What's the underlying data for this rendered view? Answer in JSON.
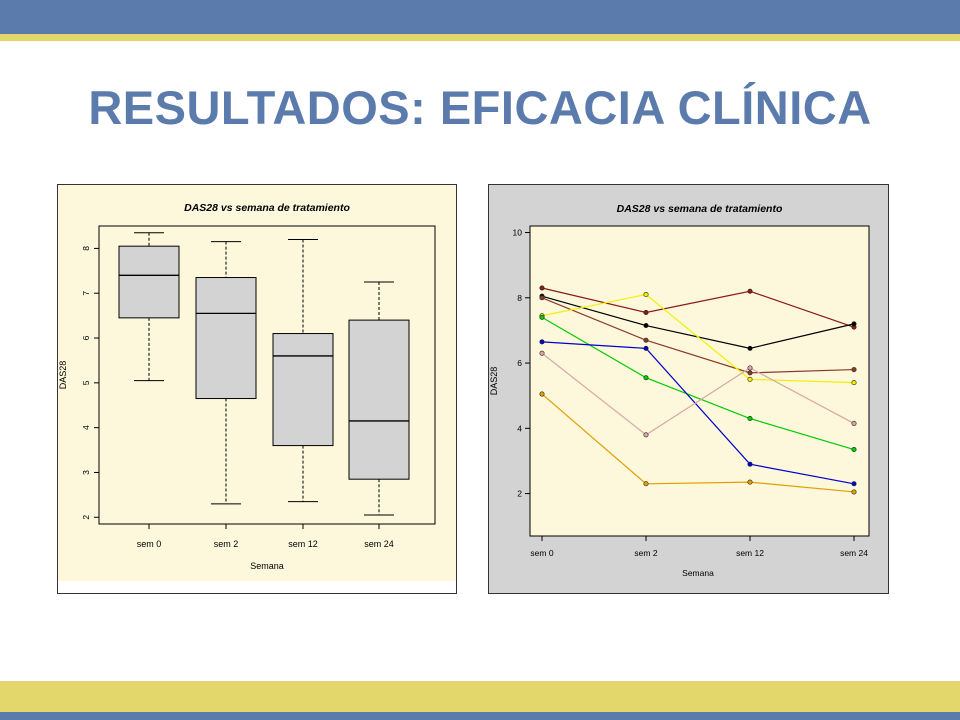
{
  "slide": {
    "title": "RESULTADOS: EFICACIA CLÍNICA",
    "colors": {
      "band_blue": "#5b7bad",
      "band_yellow": "#e3d66b",
      "title": "#5b7bad"
    }
  },
  "chart_data": [
    {
      "type": "box",
      "title": "DAS28 vs semana de tratamiento",
      "xlabel": "Semana",
      "ylabel": "DAS28",
      "categories": [
        "sem 0",
        "sem 2",
        "sem 12",
        "sem 24"
      ],
      "yticks": [
        2,
        3,
        4,
        5,
        6,
        7,
        8
      ],
      "ylim": [
        1.85,
        8.5
      ],
      "boxes": [
        {
          "category": "sem 0",
          "min": 5.05,
          "q1": 6.45,
          "median": 7.4,
          "q3": 8.05,
          "max": 8.35
        },
        {
          "category": "sem 2",
          "min": 2.3,
          "q1": 4.65,
          "median": 6.55,
          "q3": 7.35,
          "max": 8.15
        },
        {
          "category": "sem 12",
          "min": 2.35,
          "q1": 3.6,
          "median": 5.6,
          "q3": 6.1,
          "max": 8.2
        },
        {
          "category": "sem 24",
          "min": 2.05,
          "q1": 2.85,
          "median": 4.15,
          "q3": 6.4,
          "max": 7.25
        }
      ],
      "colors": {
        "plot_bg": "#fdf7dc",
        "box_fill": "#d3d3d3"
      }
    },
    {
      "type": "line",
      "title": "DAS28 vs semana de tratamiento",
      "xlabel": "Semana",
      "ylabel": "DAS28",
      "categories": [
        "sem 0",
        "sem 2",
        "sem 12",
        "sem 24"
      ],
      "yticks": [
        2,
        4,
        6,
        8,
        10
      ],
      "ylim": [
        0.7,
        10.2
      ],
      "series": [
        {
          "color": "#8b1a1a",
          "values": [
            8.3,
            7.55,
            8.2,
            7.1
          ]
        },
        {
          "color": "#000000",
          "values": [
            8.05,
            7.15,
            6.45,
            7.2
          ]
        },
        {
          "color": "#8b3a2a",
          "values": [
            8.0,
            6.7,
            5.7,
            5.8
          ]
        },
        {
          "color": "#f2f200",
          "values": [
            7.45,
            8.1,
            5.5,
            5.4
          ]
        },
        {
          "color": "#00cc00",
          "values": [
            7.4,
            5.55,
            4.3,
            3.35
          ]
        },
        {
          "color": "#0000cc",
          "values": [
            6.65,
            6.45,
            2.9,
            2.3
          ]
        },
        {
          "color": "#d9a7a7",
          "values": [
            6.3,
            3.8,
            5.85,
            4.15
          ]
        },
        {
          "color": "#e0a000",
          "values": [
            5.05,
            2.3,
            2.35,
            2.05
          ]
        }
      ],
      "colors": {
        "outer_bg": "#d3d3d3",
        "plot_bg": "#fdf7dc"
      }
    }
  ]
}
